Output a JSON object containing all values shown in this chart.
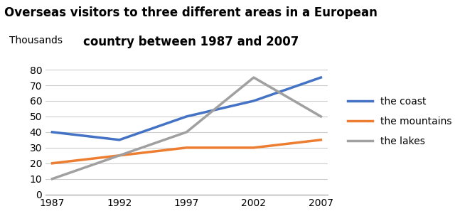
{
  "title_line1": "Overseas visitors to three different areas in a European",
  "title_line2": "country between 1987 and 2007",
  "ylabel": "Thousands",
  "years": [
    1987,
    1992,
    1997,
    2002,
    2007
  ],
  "series": [
    {
      "label": "the coast",
      "values": [
        40,
        35,
        50,
        60,
        75
      ],
      "color": "#4472C4",
      "linewidth": 2.5
    },
    {
      "label": "the mountains",
      "values": [
        20,
        25,
        30,
        30,
        35
      ],
      "color": "#ED7D31",
      "linewidth": 2.5
    },
    {
      "label": "the lakes",
      "values": [
        10,
        25,
        40,
        75,
        50
      ],
      "color": "#A0A0A0",
      "linewidth": 2.5
    }
  ],
  "ylim": [
    0,
    85
  ],
  "yticks": [
    0,
    10,
    20,
    30,
    40,
    50,
    60,
    70,
    80
  ],
  "xticks": [
    1987,
    1992,
    1997,
    2002,
    2007
  ],
  "title_fontsize": 12,
  "legend_fontsize": 10,
  "axis_fontsize": 10,
  "background_color": "#ffffff",
  "grid_color": "#cccccc"
}
